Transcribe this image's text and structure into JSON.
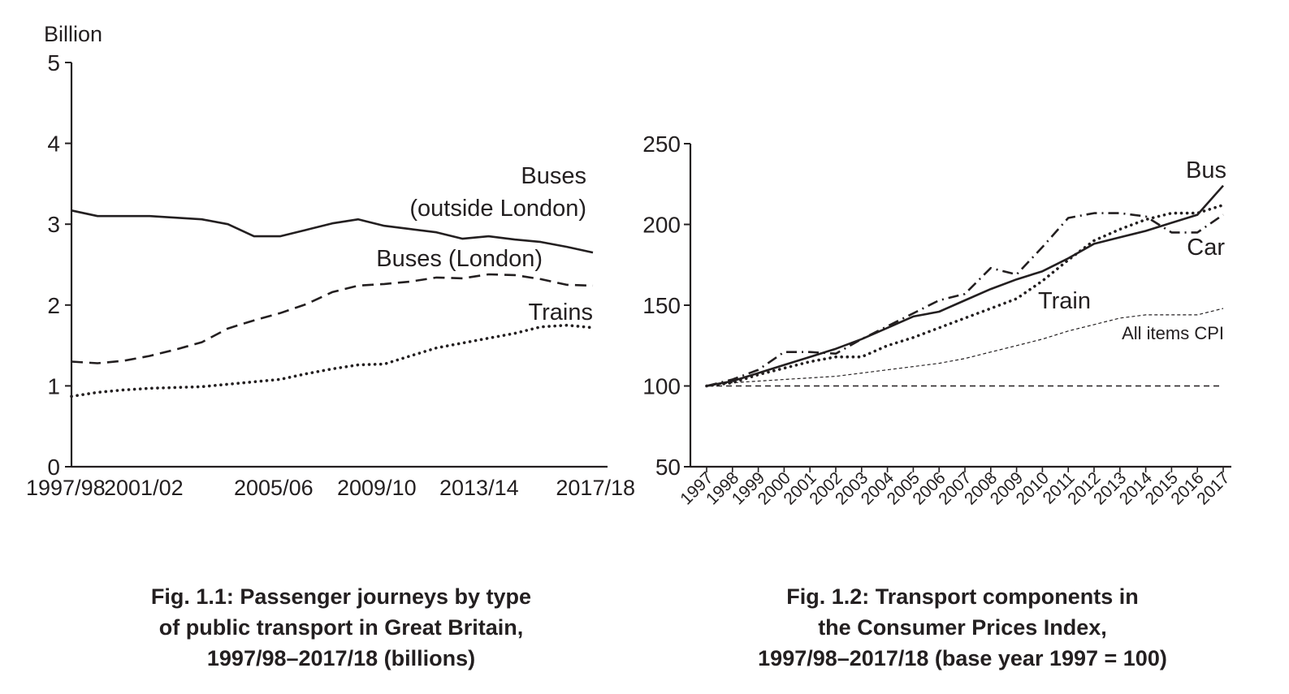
{
  "figures": [
    {
      "caption": [
        "Fig. 1.1: Passenger journeys by type",
        "of public transport in Great Britain,",
        "1997/98–2017/18 (billions)"
      ]
    },
    {
      "caption": [
        "Fig. 1.2: Transport components in",
        "the Consumer Prices Index,",
        "1997/98–2017/18 (base year 1997 = 100)"
      ]
    }
  ],
  "chart_data": [
    {
      "type": "line",
      "title": "Fig. 1.1: Passenger journeys by type of public transport in Great Britain, 1997/98–2017/18 (billions)",
      "ylabel": "Billion",
      "xlabel": "",
      "ylim": [
        0,
        5
      ],
      "yticks": [
        0,
        1,
        2,
        3,
        4,
        5
      ],
      "x_tick_labels": [
        "1997/98",
        "2001/02",
        "2005/06",
        "2009/10",
        "2013/14",
        "2017/18"
      ],
      "grid": false,
      "series": [
        {
          "name": "Buses (outside London)",
          "label_lines": [
            "Buses",
            "(outside London)"
          ],
          "style": "solid",
          "values": [
            3.17,
            3.1,
            3.1,
            3.1,
            3.08,
            3.06,
            3.0,
            2.85,
            2.85,
            2.93,
            3.01,
            3.06,
            2.98,
            2.94,
            2.9,
            2.82,
            2.85,
            2.81,
            2.78,
            2.72,
            2.65
          ]
        },
        {
          "name": "Buses (London)",
          "label_lines": [
            "Buses (London)"
          ],
          "style": "dashed",
          "values": [
            1.3,
            1.28,
            1.31,
            1.37,
            1.45,
            1.54,
            1.71,
            1.81,
            1.9,
            2.01,
            2.16,
            2.24,
            2.26,
            2.29,
            2.34,
            2.33,
            2.38,
            2.37,
            2.32,
            2.25,
            2.24
          ]
        },
        {
          "name": "Trains",
          "label_lines": [
            "Trains"
          ],
          "style": "dotted",
          "values": [
            0.87,
            0.92,
            0.95,
            0.97,
            0.98,
            0.99,
            1.02,
            1.05,
            1.08,
            1.15,
            1.21,
            1.26,
            1.27,
            1.37,
            1.47,
            1.53,
            1.59,
            1.65,
            1.73,
            1.75,
            1.72
          ]
        }
      ]
    },
    {
      "type": "line",
      "title": "Fig. 1.2: Transport components in the Consumer Prices Index, 1997/98–2017/18 (base year 1997 = 100)",
      "xlabel": "",
      "ylabel": "",
      "ylim": [
        50,
        250
      ],
      "yticks": [
        50,
        100,
        150,
        200,
        250
      ],
      "x": [
        1997,
        1998,
        1999,
        2000,
        2001,
        2002,
        2003,
        2004,
        2005,
        2006,
        2007,
        2008,
        2009,
        2010,
        2011,
        2012,
        2013,
        2014,
        2015,
        2016,
        2017
      ],
      "grid": false,
      "reference_line": {
        "y": 100,
        "style": "dashed"
      },
      "series": [
        {
          "name": "Bus",
          "style": "solid",
          "values": [
            100,
            103,
            108,
            113,
            118,
            123,
            129,
            136,
            143,
            146,
            153,
            160,
            166,
            171,
            179,
            188,
            192,
            196,
            201,
            206,
            224
          ]
        },
        {
          "name": "Car",
          "style": "dashdot",
          "values": [
            100,
            104,
            110,
            121,
            121,
            120,
            129,
            137,
            145,
            153,
            157,
            173,
            169,
            186,
            204,
            207,
            207,
            205,
            195,
            195,
            206
          ]
        },
        {
          "name": "Train",
          "style": "dotted",
          "values": [
            100,
            102,
            107,
            111,
            115,
            118,
            118,
            125,
            130,
            136,
            142,
            148,
            154,
            165,
            178,
            190,
            197,
            203,
            207,
            207,
            212
          ]
        },
        {
          "name": "All items CPI",
          "style": "thin-dashed",
          "values": [
            100,
            102,
            103,
            104,
            105,
            106,
            108,
            110,
            112,
            114,
            117,
            121,
            125,
            129,
            134,
            138,
            142,
            144,
            144,
            144,
            148
          ]
        }
      ]
    }
  ]
}
